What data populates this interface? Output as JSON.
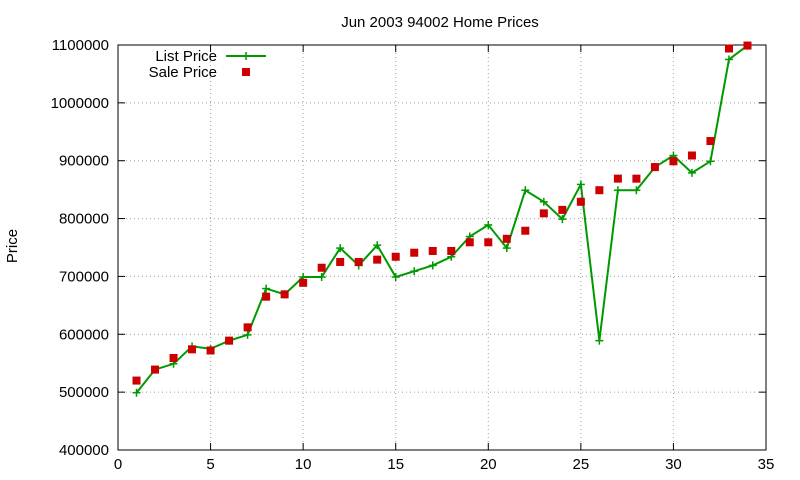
{
  "chart_data": {
    "type": "line",
    "title": "Jun 2003 94002 Home Prices",
    "xlabel": "",
    "ylabel": "Price",
    "xlim": [
      0,
      35
    ],
    "ylim": [
      400000,
      1100000
    ],
    "xticks": [
      0,
      5,
      10,
      15,
      20,
      25,
      30,
      35
    ],
    "yticks": [
      400000,
      500000,
      600000,
      700000,
      800000,
      900000,
      1000000,
      1100000
    ],
    "grid": true,
    "legend_position": "top-left",
    "series": [
      {
        "name": "List Price",
        "style": "line+cross",
        "color": "#009900",
        "x": [
          1,
          2,
          3,
          4,
          5,
          6,
          7,
          8,
          9,
          10,
          11,
          12,
          13,
          14,
          15,
          16,
          17,
          18,
          19,
          20,
          21,
          22,
          23,
          24,
          25,
          26,
          27,
          28,
          29,
          30,
          31,
          32,
          33,
          34
        ],
        "values": [
          499000,
          539000,
          549000,
          579000,
          575000,
          589000,
          599000,
          679000,
          669000,
          699000,
          699000,
          749000,
          719000,
          754000,
          699000,
          709000,
          719000,
          734000,
          769000,
          789000,
          749000,
          849000,
          829000,
          799000,
          859000,
          589000,
          849000,
          849000,
          889000,
          909000,
          879000,
          899000,
          1075000,
          1099000
        ]
      },
      {
        "name": "Sale Price",
        "style": "square",
        "color": "#cc0000",
        "x": [
          1,
          2,
          3,
          4,
          5,
          6,
          7,
          8,
          9,
          10,
          11,
          12,
          13,
          14,
          15,
          16,
          17,
          18,
          19,
          20,
          21,
          22,
          23,
          24,
          25,
          26,
          27,
          28,
          29,
          30,
          31,
          32,
          33,
          34
        ],
        "values": [
          520000,
          539000,
          559000,
          574000,
          572000,
          589000,
          612000,
          665000,
          669000,
          689000,
          715000,
          725000,
          725000,
          729000,
          734000,
          741000,
          744000,
          744000,
          759000,
          759000,
          765000,
          779000,
          809000,
          815000,
          829000,
          849000,
          869000,
          869000,
          889000,
          899000,
          909000,
          934000,
          1094000,
          1099000
        ]
      }
    ]
  }
}
